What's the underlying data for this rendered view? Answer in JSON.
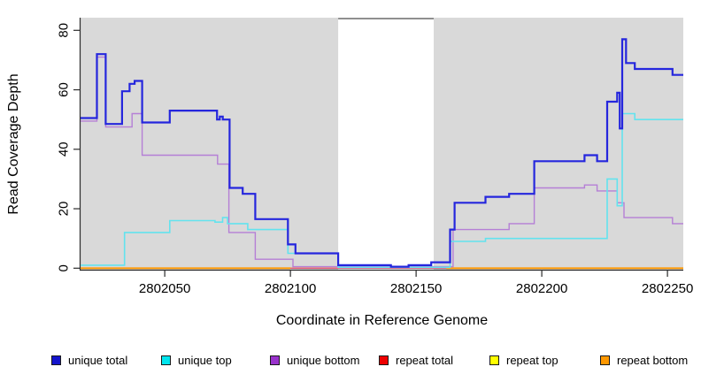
{
  "chart_data": {
    "type": "line",
    "subtype": "step-coverage-plot",
    "title": "",
    "xlabel": "Coordinate in Reference Genome",
    "ylabel": "Read Coverage Depth",
    "xlim": [
      2802016.5,
      2802256.3
    ],
    "ylim": [
      0,
      80
    ],
    "x_ticks": [
      2802050,
      2802100,
      2802150,
      2802200,
      2802250
    ],
    "y_ticks": [
      0,
      20,
      40,
      60,
      80
    ],
    "grid": false,
    "plot_bg": "#d9d9d9",
    "gap_region": {
      "start": 2802119,
      "end": 2802157,
      "fill": "#ffffff",
      "top_line_color": "#8f8f8f"
    },
    "axis_color": "#2b2b2b",
    "series": [
      {
        "name": "repeat top",
        "color": "#ffff00",
        "width": 1.4,
        "segments": [
          [
            [
              2802016.5,
              0
            ],
            [
              2802256.3,
              0
            ]
          ]
        ]
      },
      {
        "name": "repeat total",
        "color": "#e05575",
        "width": 1.4,
        "segments": [
          [
            [
              2802016.5,
              0
            ],
            [
              2802256.3,
              0
            ]
          ]
        ]
      },
      {
        "name": "repeat bottom",
        "color": "#ff9800",
        "width": 1.9,
        "segments": [
          [
            [
              2802016.5,
              0
            ],
            [
              2802100,
              0
            ]
          ],
          [
            [
              2802162,
              0
            ],
            [
              2802256.3,
              0
            ]
          ]
        ]
      },
      {
        "name": "unique bottom",
        "color": "#b57fd6",
        "width": 1.4,
        "segments": [
          [
            [
              2802016.5,
              49.5
            ],
            [
              2802023,
              71
            ],
            [
              2802026.5,
              47.5
            ],
            [
              2802037,
              52
            ],
            [
              2802041,
              38
            ],
            [
              2802071,
              35
            ],
            [
              2802075.5,
              12
            ],
            [
              2802086,
              3
            ],
            [
              2802101,
              0.5
            ],
            [
              2802164.7,
              13
            ],
            [
              2802187,
              15
            ],
            [
              2802197,
              27
            ],
            [
              2802217,
              28
            ],
            [
              2802222,
              26
            ],
            [
              2802230,
              22
            ],
            [
              2802232.7,
              17
            ],
            [
              2802252,
              15
            ],
            [
              2802256.3,
              15
            ]
          ]
        ]
      },
      {
        "name": "unique top",
        "color": "#63e3ee",
        "width": 1.6,
        "segments": [
          [
            [
              2802016.5,
              1
            ],
            [
              2802034,
              12
            ],
            [
              2802052,
              16
            ],
            [
              2802070,
              15.5
            ],
            [
              2802073,
              17
            ],
            [
              2802075,
              15
            ],
            [
              2802083,
              13
            ],
            [
              2802099,
              5
            ],
            [
              2802119,
              0.3
            ],
            [
              2802163.5,
              9
            ],
            [
              2802177.6,
              10
            ],
            [
              2802226,
              30
            ],
            [
              2802230,
              21
            ],
            [
              2802232,
              52
            ],
            [
              2802237,
              50
            ],
            [
              2802256.3,
              50
            ]
          ]
        ]
      },
      {
        "name": "unique total",
        "color": "#2526dd",
        "width": 2.2,
        "segments": [
          [
            [
              2802016.5,
              50.5
            ],
            [
              2802023,
              72
            ],
            [
              2802026.5,
              48.5
            ],
            [
              2802033,
              59.5
            ],
            [
              2802036,
              62
            ],
            [
              2802038,
              63
            ],
            [
              2802041,
              49
            ],
            [
              2802052,
              53
            ],
            [
              2802070.8,
              50
            ],
            [
              2802071.9,
              51
            ],
            [
              2802073.1,
              50
            ],
            [
              2802075.8,
              27
            ],
            [
              2802081,
              25
            ],
            [
              2802086,
              16.5
            ],
            [
              2802099,
              8
            ],
            [
              2802102,
              5
            ],
            [
              2802119,
              1
            ],
            [
              2802140,
              0.5
            ],
            [
              2802147,
              1
            ],
            [
              2802156,
              2
            ],
            [
              2802163.5,
              13
            ],
            [
              2802165.3,
              22
            ],
            [
              2802177.6,
              24
            ],
            [
              2802187,
              25
            ],
            [
              2802197,
              36
            ],
            [
              2802217,
              38
            ],
            [
              2802222,
              36
            ],
            [
              2802226,
              56
            ],
            [
              2802230,
              59
            ],
            [
              2802231,
              47
            ],
            [
              2802232,
              77
            ],
            [
              2802233.5,
              69
            ],
            [
              2802237,
              67
            ],
            [
              2802252,
              65
            ],
            [
              2802256.3,
              65
            ]
          ]
        ]
      }
    ],
    "legend": [
      {
        "label": "unique total",
        "color": "#1414cc"
      },
      {
        "label": "unique top",
        "color": "#00e5ee"
      },
      {
        "label": "unique bottom",
        "color": "#9932cc"
      },
      {
        "label": "repeat total",
        "color": "#ee0000"
      },
      {
        "label": "repeat top",
        "color": "#ffff00"
      },
      {
        "label": "repeat bottom",
        "color": "#ff9800"
      }
    ],
    "legend_position": "bottom"
  }
}
